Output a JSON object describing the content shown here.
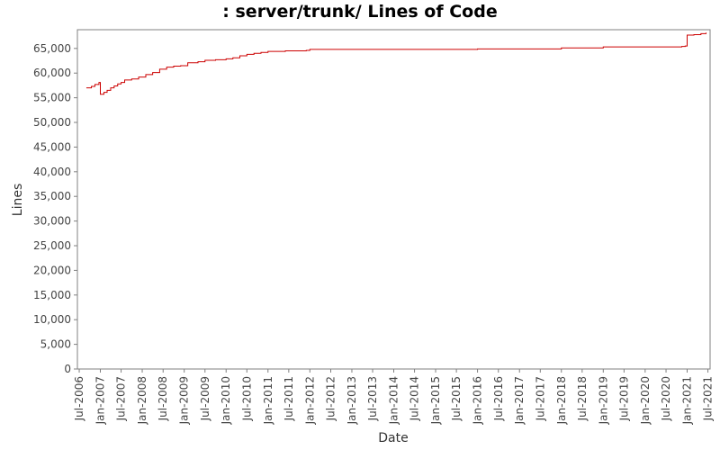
{
  "chart_data": {
    "type": "line",
    "title": ": server/trunk/ Lines of Code",
    "xlabel": "Date",
    "ylabel": "Lines",
    "ylim": [
      0,
      68800
    ],
    "xlim": [
      "2006-06-15",
      "2021-07-20"
    ],
    "grid": false,
    "legend": "none",
    "line_color": "#cc0000",
    "y_ticks": [
      0,
      5000,
      10000,
      15000,
      20000,
      25000,
      30000,
      35000,
      40000,
      45000,
      50000,
      55000,
      60000,
      65000
    ],
    "y_tick_labels": [
      "0",
      "5,000",
      "10,000",
      "15,000",
      "20,000",
      "25,000",
      "30,000",
      "35,000",
      "40,000",
      "45,000",
      "50,000",
      "55,000",
      "60,000",
      "65,000"
    ],
    "x_ticks": [
      "2006-07-01",
      "2007-01-01",
      "2007-07-01",
      "2008-01-01",
      "2008-07-01",
      "2009-01-01",
      "2009-07-01",
      "2010-01-01",
      "2010-07-01",
      "2011-01-01",
      "2011-07-01",
      "2012-01-01",
      "2012-07-01",
      "2013-01-01",
      "2013-07-01",
      "2014-01-01",
      "2014-07-01",
      "2015-01-01",
      "2015-07-01",
      "2016-01-01",
      "2016-07-01",
      "2017-01-01",
      "2017-07-01",
      "2018-01-01",
      "2018-07-01",
      "2019-01-01",
      "2019-07-01",
      "2020-01-01",
      "2020-07-01",
      "2021-01-01",
      "2021-07-01"
    ],
    "x_tick_labels": [
      "Jul-2006",
      "Jan-2007",
      "Jul-2007",
      "Jan-2008",
      "Jul-2008",
      "Jan-2009",
      "Jul-2009",
      "Jan-2010",
      "Jul-2010",
      "Jan-2011",
      "Jul-2011",
      "Jan-2012",
      "Jul-2012",
      "Jan-2013",
      "Jul-2013",
      "Jan-2014",
      "Jul-2014",
      "Jan-2015",
      "Jul-2015",
      "Jan-2016",
      "Jul-2016",
      "Jan-2017",
      "Jul-2017",
      "Jan-2018",
      "Jul-2018",
      "Jan-2019",
      "Jul-2019",
      "Jan-2020",
      "Jul-2020",
      "Jan-2021",
      "Jul-2021"
    ],
    "series": [
      {
        "points": [
          [
            "2006-09-01",
            57000
          ],
          [
            "2006-10-15",
            57300
          ],
          [
            "2006-11-15",
            57700
          ],
          [
            "2006-12-20",
            58100
          ],
          [
            "2007-01-01",
            55700
          ],
          [
            "2007-02-01",
            56100
          ],
          [
            "2007-03-01",
            56500
          ],
          [
            "2007-04-01",
            57000
          ],
          [
            "2007-05-01",
            57400
          ],
          [
            "2007-06-01",
            57800
          ],
          [
            "2007-07-01",
            58100
          ],
          [
            "2007-08-01",
            58600
          ],
          [
            "2007-10-01",
            58800
          ],
          [
            "2007-12-01",
            59200
          ],
          [
            "2008-02-01",
            59700
          ],
          [
            "2008-04-01",
            60100
          ],
          [
            "2008-06-01",
            60800
          ],
          [
            "2008-08-01",
            61200
          ],
          [
            "2008-10-01",
            61400
          ],
          [
            "2008-12-01",
            61500
          ],
          [
            "2009-02-01",
            62100
          ],
          [
            "2009-05-01",
            62300
          ],
          [
            "2009-07-01",
            62600
          ],
          [
            "2009-10-01",
            62700
          ],
          [
            "2010-01-01",
            62900
          ],
          [
            "2010-03-01",
            63100
          ],
          [
            "2010-05-01",
            63500
          ],
          [
            "2010-07-01",
            63800
          ],
          [
            "2010-09-01",
            64000
          ],
          [
            "2010-11-01",
            64200
          ],
          [
            "2011-01-01",
            64400
          ],
          [
            "2011-06-01",
            64500
          ],
          [
            "2011-12-01",
            64600
          ],
          [
            "2012-01-01",
            64800
          ],
          [
            "2016-01-01",
            64900
          ],
          [
            "2018-01-01",
            65100
          ],
          [
            "2019-01-01",
            65300
          ],
          [
            "2020-11-15",
            65400
          ],
          [
            "2020-12-15",
            65500
          ],
          [
            "2021-01-01",
            67700
          ],
          [
            "2021-03-01",
            67800
          ],
          [
            "2021-05-01",
            68000
          ],
          [
            "2021-06-15",
            68200
          ]
        ]
      }
    ]
  }
}
